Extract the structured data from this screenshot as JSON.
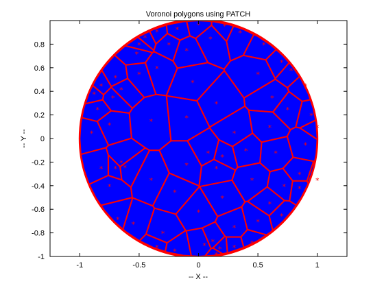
{
  "chart_data": {
    "type": "scatter",
    "title": "Voronoi polygons using PATCH",
    "xlabel": "-- X --",
    "ylabel": "-- Y --",
    "xlim": [
      -1.25,
      1.25
    ],
    "ylim": [
      -1.0,
      1.0
    ],
    "x_ticks": [
      -1,
      -0.5,
      0,
      0.5,
      1
    ],
    "x_tick_labels": [
      "-1",
      "-0.5",
      "0",
      "0.5",
      "1"
    ],
    "y_ticks": [
      -1,
      -0.8,
      -0.6,
      -0.4,
      -0.2,
      0,
      0.2,
      0.4,
      0.6,
      0.8
    ],
    "y_tick_labels": [
      "-1",
      "-0.8",
      "-0.6",
      "-0.4",
      "-0.2",
      "0",
      "0.2",
      "0.4",
      "0.6",
      "0.8"
    ],
    "grid": false,
    "fill_color": "#0000ff",
    "edge_color": "#ff0000",
    "marker_color": "#ff0000",
    "marker": "asterisk",
    "points": [
      {
        "x": -0.35,
        "y": 0.91
      },
      {
        "x": -0.45,
        "y": 0.86
      },
      {
        "x": -0.18,
        "y": 0.93
      },
      {
        "x": 0.0,
        "y": 0.97
      },
      {
        "x": 0.22,
        "y": 0.96
      },
      {
        "x": 0.35,
        "y": 0.9
      },
      {
        "x": -0.25,
        "y": 0.8
      },
      {
        "x": 0.1,
        "y": 0.85
      },
      {
        "x": -0.1,
        "y": 0.75
      },
      {
        "x": 0.55,
        "y": 0.8
      },
      {
        "x": 0.7,
        "y": 0.65
      },
      {
        "x": 0.78,
        "y": 0.58
      },
      {
        "x": -0.52,
        "y": 0.72
      },
      {
        "x": -0.7,
        "y": 0.52
      },
      {
        "x": -0.82,
        "y": 0.45
      },
      {
        "x": -0.85,
        "y": 0.25
      },
      {
        "x": -0.72,
        "y": 0.35
      },
      {
        "x": -0.65,
        "y": 0.42
      },
      {
        "x": -0.5,
        "y": 0.55
      },
      {
        "x": -0.35,
        "y": 0.6
      },
      {
        "x": -0.05,
        "y": 0.48
      },
      {
        "x": 0.5,
        "y": 0.55
      },
      {
        "x": 0.62,
        "y": 0.35
      },
      {
        "x": 0.9,
        "y": 0.45
      },
      {
        "x": 0.95,
        "y": 0.2
      },
      {
        "x": 1.0,
        "y": 0.1
      },
      {
        "x": -0.75,
        "y": 0.12
      },
      {
        "x": -0.9,
        "y": 0.05
      },
      {
        "x": -0.4,
        "y": 0.15
      },
      {
        "x": -0.1,
        "y": 0.18
      },
      {
        "x": 0.15,
        "y": 0.3
      },
      {
        "x": 0.3,
        "y": 0.05
      },
      {
        "x": 0.6,
        "y": 0.1
      },
      {
        "x": 0.75,
        "y": 0.25
      },
      {
        "x": 0.9,
        "y": -0.05
      },
      {
        "x": 0.85,
        "y": -0.3
      },
      {
        "x": 0.65,
        "y": -0.12
      },
      {
        "x": 0.4,
        "y": -0.1
      },
      {
        "x": 0.2,
        "y": -0.15
      },
      {
        "x": 0.08,
        "y": -0.12
      },
      {
        "x": 0.15,
        "y": -0.25
      },
      {
        "x": -0.1,
        "y": -0.22
      },
      {
        "x": -0.65,
        "y": -0.2
      },
      {
        "x": -0.62,
        "y": -0.24
      },
      {
        "x": -0.7,
        "y": -0.25
      },
      {
        "x": -0.82,
        "y": -0.25
      },
      {
        "x": -0.75,
        "y": -0.4
      },
      {
        "x": -0.4,
        "y": -0.35
      },
      {
        "x": -0.2,
        "y": -0.45
      },
      {
        "x": 0.2,
        "y": -0.5
      },
      {
        "x": 0.45,
        "y": -0.35
      },
      {
        "x": 0.72,
        "y": -0.4
      },
      {
        "x": 0.85,
        "y": -0.42
      },
      {
        "x": 0.6,
        "y": -0.55
      },
      {
        "x": -0.68,
        "y": -0.68
      },
      {
        "x": -0.55,
        "y": -0.72
      },
      {
        "x": -0.3,
        "y": -0.8
      },
      {
        "x": 0.0,
        "y": -0.62
      },
      {
        "x": 0.3,
        "y": -0.75
      },
      {
        "x": 0.5,
        "y": -0.7
      },
      {
        "x": 0.7,
        "y": -0.65
      },
      {
        "x": -0.35,
        "y": -0.92
      },
      {
        "x": -0.2,
        "y": -0.95
      },
      {
        "x": 0.05,
        "y": -0.9
      },
      {
        "x": 0.12,
        "y": -0.87
      },
      {
        "x": 0.18,
        "y": -0.93
      },
      {
        "x": 0.3,
        "y": -0.92
      },
      {
        "x": 0.45,
        "y": -0.88
      },
      {
        "x": 0.15,
        "y": -0.98
      },
      {
        "x": -0.5,
        "y": 0.8
      },
      {
        "x": -0.88,
        "y": 0.38
      },
      {
        "x": 1.0,
        "y": -0.35
      }
    ],
    "cell_count_description_hidden": null
  }
}
